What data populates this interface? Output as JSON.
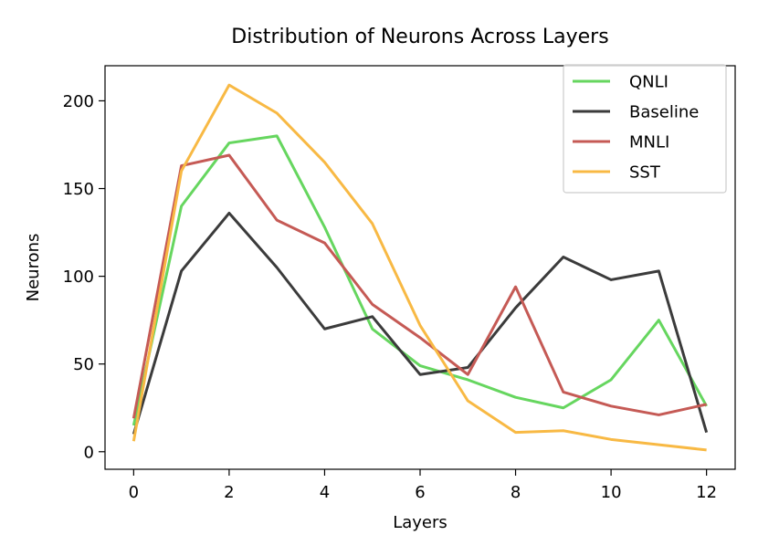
{
  "chart_data": {
    "type": "line",
    "title": "Distribution of Neurons Across Layers",
    "xlabel": "Layers",
    "ylabel": "Neurons",
    "x": [
      0,
      1,
      2,
      3,
      4,
      5,
      6,
      7,
      8,
      9,
      10,
      11,
      12
    ],
    "xlim": [
      -0.6,
      12.6
    ],
    "ylim": [
      -10,
      220
    ],
    "xticks": [
      0,
      2,
      4,
      6,
      8,
      10,
      12
    ],
    "yticks": [
      0,
      50,
      100,
      150,
      200
    ],
    "xtick_labels": [
      "0",
      "2",
      "4",
      "6",
      "8",
      "10",
      "12"
    ],
    "ytick_labels": [
      "0",
      "50",
      "100",
      "150",
      "200"
    ],
    "grid": false,
    "legend_position": "top-right",
    "series": [
      {
        "name": "QNLI",
        "color": "#66d65f",
        "values": [
          15,
          140,
          176,
          180,
          128,
          70,
          49,
          41,
          31,
          25,
          41,
          75,
          26
        ]
      },
      {
        "name": "Baseline",
        "color": "#3b3b3b",
        "values": [
          10,
          103,
          136,
          105,
          70,
          77,
          44,
          48,
          82,
          111,
          98,
          103,
          11
        ]
      },
      {
        "name": "MNLI",
        "color": "#c55a55",
        "values": [
          19,
          163,
          169,
          132,
          119,
          84,
          65,
          44,
          94,
          34,
          26,
          21,
          27
        ]
      },
      {
        "name": "SST",
        "color": "#f8b944",
        "values": [
          6,
          160,
          209,
          193,
          165,
          130,
          72,
          29,
          11,
          12,
          7,
          4,
          1
        ]
      }
    ]
  }
}
